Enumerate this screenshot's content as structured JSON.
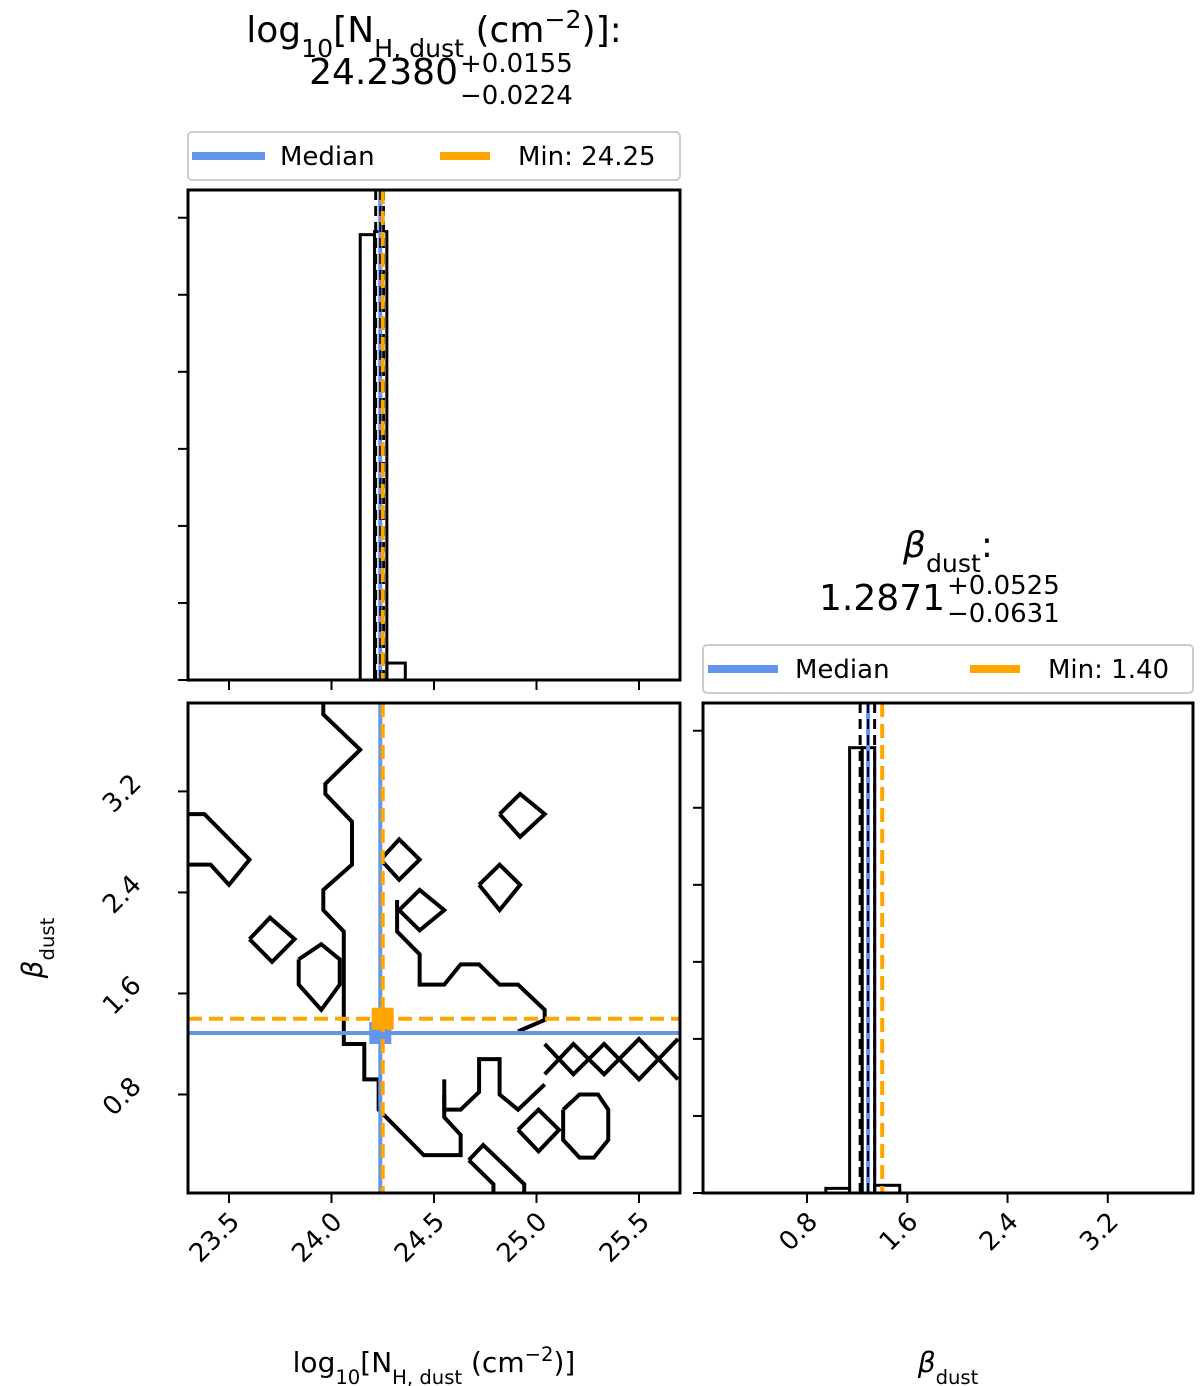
{
  "chart_data": [
    {
      "type": "histogram",
      "title": [
        {
          "text": "log"
        },
        {
          "text": "10",
          "script": "sub"
        },
        {
          "text": "[N"
        },
        {
          "text": "H, dust",
          "script": "sub"
        },
        {
          "text": " (cm"
        },
        {
          "text": "−2",
          "script": "sup"
        },
        {
          "text": ")]:"
        }
      ],
      "median": {
        "value": 24.238,
        "label": "24.2380"
      },
      "err_plus": {
        "value": 0.0155,
        "label": "+0.0155"
      },
      "err_minus": {
        "value": -0.0224,
        "label": "−0.0224"
      },
      "median_name": "Median",
      "median_color": "#6495ed",
      "min": {
        "value": 24.25,
        "label": "Min: 24.25"
      },
      "min_color": "#ffa500",
      "bins": [
        24.14,
        24.21,
        24.27,
        24.36
      ],
      "counts": [
        5.78,
        5.82,
        0.22
      ],
      "ylim": [
        0,
        6.36
      ],
      "yticks": [
        0,
        1,
        2,
        3,
        4,
        5,
        6
      ],
      "ytick_labels": false,
      "color": "#000000"
    },
    {
      "type": "contour",
      "xlim": [
        23.3,
        25.7
      ],
      "ylim": [
        0.02,
        3.9
      ],
      "xticks": [
        23.5,
        {
          "value": 24,
          "label": "24.0"
        },
        24.5,
        {
          "value": 25,
          "label": "25.0"
        },
        25.5
      ],
      "yticks": [
        0.8,
        1.6,
        2.4,
        3.2
      ],
      "xlabel": [
        {
          "text": "log"
        },
        {
          "text": "10",
          "script": "sub"
        },
        {
          "text": "[N"
        },
        {
          "text": "H, dust",
          "script": "sub"
        },
        {
          "text": " (cm"
        },
        {
          "text": "−2",
          "script": "sup"
        },
        {
          "text": ")]"
        }
      ],
      "ylabel": [
        {
          "text": "β"
        },
        {
          "text": "dust",
          "script": "sub"
        }
      ],
      "color": "#000000",
      "contours": [
        {
          "x": [
            23.3,
            23.38,
            23.6,
            23.5,
            23.41,
            23.3
          ],
          "y": [
            3.02,
            3.02,
            2.66,
            2.46,
            2.62,
            2.62
          ]
        },
        {
          "x": [
            23.6,
            23.7,
            23.82,
            23.71,
            23.6
          ],
          "y": [
            2.03,
            2.2,
            2.03,
            1.85,
            2.03
          ]
        },
        {
          "x": [
            23.84,
            23.95,
            24.04,
            24.04,
            23.95,
            23.84,
            23.84
          ],
          "y": [
            1.87,
            1.99,
            1.87,
            1.67,
            1.47,
            1.67,
            1.87
          ]
        },
        {
          "x": [
            24.24,
            24.33,
            24.43,
            24.33,
            24.24
          ],
          "y": [
            2.66,
            2.82,
            2.66,
            2.5,
            2.66
          ]
        },
        {
          "x": [
            24.33,
            24.43,
            24.55,
            24.43,
            24.33
          ],
          "y": [
            2.26,
            2.42,
            2.26,
            2.1,
            2.26
          ]
        },
        {
          "x": [
            24.72,
            24.82,
            24.92,
            24.82,
            24.72
          ],
          "y": [
            2.46,
            2.62,
            2.46,
            2.26,
            2.46
          ]
        },
        {
          "x": [
            24.82,
            24.92,
            25.04,
            24.92,
            24.82
          ],
          "y": [
            3.02,
            3.18,
            3.02,
            2.84,
            3.02
          ]
        },
        {
          "x": [
            23.96,
            23.96,
            24.14,
            23.97,
            23.97,
            24.1,
            24.1,
            23.96,
            23.96,
            24.06,
            24.06,
            24.16,
            24.16,
            24.23,
            24.23,
            24.45,
            24.63,
            24.63,
            24.55,
            24.55
          ],
          "y": [
            3.9,
            3.81,
            3.53,
            3.26,
            3.18,
            2.96,
            2.62,
            2.42,
            2.26,
            2.09,
            1.2,
            1.2,
            0.92,
            0.92,
            0.68,
            0.32,
            0.32,
            0.48,
            0.62,
            0.8
          ]
        },
        {
          "x": [
            24.32,
            24.32,
            24.43,
            24.43,
            24.55,
            24.63,
            24.72,
            24.82,
            24.91,
            25.04,
            25.04,
            24.91
          ],
          "y": [
            2.34,
            2.09,
            1.91,
            1.67,
            1.67,
            1.83,
            1.83,
            1.67,
            1.67,
            1.47,
            1.39,
            1.3
          ]
        },
        {
          "x": [
            25.04,
            25.18,
            25.33,
            25.5,
            25.69
          ],
          "y": [
            1.2,
            0.96,
            1.2,
            0.92,
            1.24
          ]
        },
        {
          "x": [
            25.04,
            25.18,
            25.33,
            25.5,
            25.62,
            25.69
          ],
          "y": [
            0.96,
            1.2,
            0.96,
            1.24,
            1.04,
            0.92
          ]
        },
        {
          "x": [
            24.55,
            24.55,
            24.63,
            24.72,
            24.72,
            24.82,
            24.82,
            24.91,
            25.04
          ],
          "y": [
            0.92,
            0.68,
            0.68,
            0.82,
            1.08,
            1.08,
            0.8,
            0.68,
            0.88
          ]
        },
        {
          "x": [
            24.91,
            25.01,
            25.11,
            25.01,
            24.91
          ],
          "y": [
            0.52,
            0.68,
            0.52,
            0.35,
            0.52
          ]
        },
        {
          "x": [
            25.13,
            25.21,
            25.3,
            25.35,
            25.35,
            25.28,
            25.21,
            25.13,
            25.13
          ],
          "y": [
            0.68,
            0.8,
            0.8,
            0.68,
            0.44,
            0.3,
            0.3,
            0.44,
            0.68
          ]
        },
        {
          "x": [
            24.67,
            24.74,
            24.94,
            24.94
          ],
          "y": [
            0.28,
            0.4,
            0.09,
            0.02
          ]
        },
        {
          "x": [
            24.67,
            24.79,
            24.79
          ],
          "y": [
            0.28,
            0.09,
            0.02
          ]
        }
      ]
    },
    {
      "type": "histogram",
      "title": [
        {
          "text": "β"
        },
        {
          "text": "dust",
          "script": "sub"
        },
        {
          "text": ":"
        }
      ],
      "median": {
        "value": 1.2871,
        "label": "1.2871"
      },
      "err_plus": {
        "value": 0.0525,
        "label": "+0.0525"
      },
      "err_minus": {
        "value": -0.0631,
        "label": "−0.0631"
      },
      "median_name": "Median",
      "median_color": "#6495ed",
      "min": {
        "value": 1.4,
        "label": "Min: 1.40"
      },
      "min_color": "#ffa500",
      "bins": [
        0.95,
        1.14,
        1.24,
        1.34,
        1.54
      ],
      "counts": [
        0.06,
        5.78,
        5.78,
        0.1
      ],
      "xlim": [
        -0.03,
        3.88
      ],
      "xticks": [
        0.8,
        1.6,
        2.4,
        3.2
      ],
      "xlabel": [
        {
          "text": "β"
        },
        {
          "text": "dust",
          "script": "sub"
        }
      ],
      "ylim": [
        0,
        6.36
      ],
      "yticks": [
        0,
        1,
        2,
        3,
        4,
        5,
        6
      ],
      "ytick_labels": false,
      "color": "#000000"
    }
  ]
}
